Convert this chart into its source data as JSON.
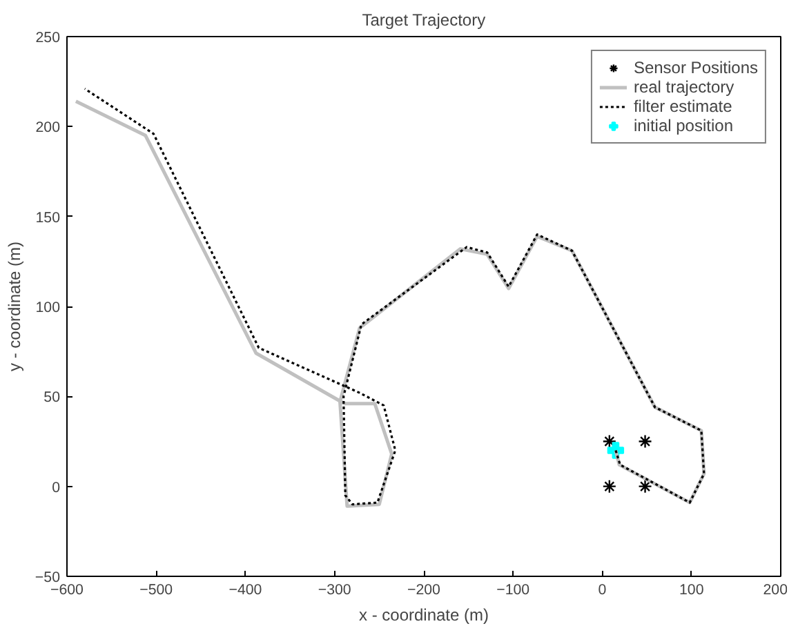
{
  "chart_data": {
    "type": "line",
    "title": "Target Trajectory",
    "xlabel": "x - coordinate (m)",
    "ylabel": "y - coordinate (m)",
    "xlim": [
      -600,
      200
    ],
    "xticks": [
      -600,
      -500,
      -400,
      -300,
      -200,
      -100,
      0,
      100,
      200
    ],
    "ylim": [
      -50,
      250
    ],
    "yticks": [
      -50,
      0,
      50,
      100,
      150,
      200,
      250
    ],
    "grid": false,
    "legend": "top right",
    "series": [
      {
        "name": "Sensor Positions",
        "type": "scatter",
        "marker": "cross",
        "color": "#000000",
        "x": [
          8,
          48,
          8,
          48
        ],
        "values": [
          25,
          25,
          0,
          0
        ]
      },
      {
        "name": "real trajectory",
        "line_style": "solid",
        "color": "#c0c0c0",
        "x": [
          15,
          19,
          98,
          114,
          111,
          59,
          -34,
          -73,
          -105,
          -129,
          -159,
          -272,
          -294,
          -286,
          -250,
          -236,
          -255,
          -289,
          -388,
          -512,
          -590
        ],
        "values": [
          20,
          12,
          -9,
          7,
          31,
          44,
          131,
          139,
          110,
          129,
          132,
          88,
          47,
          -11,
          -10,
          18,
          46,
          46,
          74,
          195,
          214
        ]
      },
      {
        "name": "filter estimate",
        "line_style": "dotted",
        "color": "#000000",
        "x": [
          15,
          20,
          98,
          114,
          111,
          59,
          -34,
          -73,
          -105,
          -129,
          -152,
          -270,
          -290,
          -288,
          -280,
          -252,
          -232,
          -245,
          -272,
          -385,
          -503,
          -580
        ],
        "values": [
          20,
          12,
          -9,
          7,
          31,
          44,
          131,
          140,
          111,
          130,
          133,
          90,
          50,
          -5,
          -10,
          -9,
          20,
          45,
          52,
          77,
          196,
          221
        ]
      },
      {
        "name": "initial position",
        "type": "scatter",
        "marker": "cross",
        "color": "#00ffff",
        "x": [
          15
        ],
        "values": [
          20
        ]
      }
    ]
  }
}
